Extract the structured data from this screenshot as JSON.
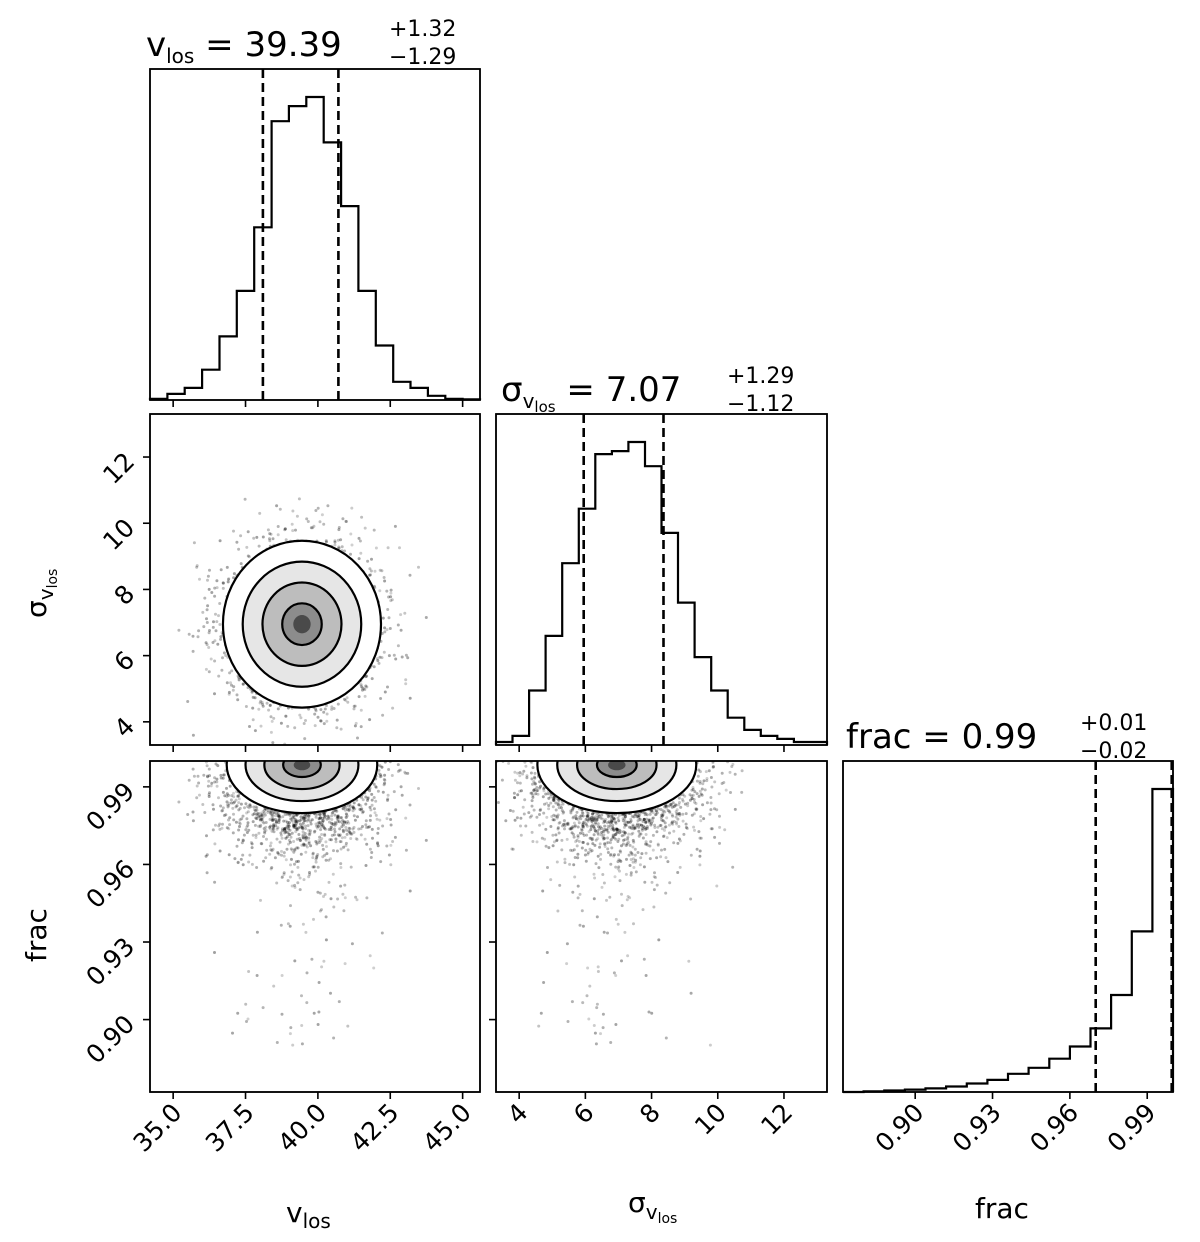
{
  "chart_data": {
    "type": "corner",
    "parameters": [
      {
        "name": "v",
        "subscript": "los",
        "prefix": "",
        "title": {
          "value": "39.39",
          "plus": "+1.32",
          "minus": "−1.29"
        },
        "median": 39.39,
        "q16": 38.1,
        "q84": 40.71,
        "range": [
          34.2,
          45.6
        ],
        "ticks": [
          35.0,
          37.5,
          40.0,
          42.5,
          45.0
        ],
        "tick_labels": [
          "35.0",
          "37.5",
          "40.0",
          "42.5",
          "45.0"
        ],
        "label": {
          "base": "v",
          "sub": "los"
        }
      },
      {
        "name": "σ",
        "subscript": "los",
        "prefix": "σ",
        "title": {
          "value": "7.07",
          "plus": "+1.29",
          "minus": "−1.12"
        },
        "median": 7.07,
        "q16": 5.95,
        "q84": 8.36,
        "range": [
          3.3,
          13.3
        ],
        "ticks": [
          4,
          6,
          8,
          10,
          12
        ],
        "tick_labels": [
          "4",
          "6",
          "8",
          "10",
          "12"
        ],
        "label": {
          "base": "σ",
          "sub": "v",
          "subsub": "los"
        }
      },
      {
        "name": "frac",
        "title": {
          "value": "0.99",
          "plus": "+0.01",
          "minus": "−0.02"
        },
        "median": 0.99,
        "q16": 0.97,
        "q84": 0.9995,
        "range": [
          0.872,
          1.0
        ],
        "ticks": [
          0.9,
          0.93,
          0.96,
          0.99
        ],
        "tick_labels": [
          "0.90",
          "0.93",
          "0.96",
          "0.99"
        ],
        "label": {
          "base": "frac"
        }
      }
    ],
    "hist_v_los": {
      "bins": [
        34.2,
        34.8,
        35.4,
        36.0,
        36.6,
        37.2,
        37.8,
        38.4,
        39.0,
        39.6,
        40.2,
        40.8,
        41.4,
        42.0,
        42.6,
        43.2,
        43.8,
        44.4,
        45.0,
        45.6
      ],
      "counts": [
        0.004,
        0.02,
        0.04,
        0.1,
        0.21,
        0.36,
        0.57,
        0.92,
        0.97,
        1.0,
        0.85,
        0.64,
        0.36,
        0.18,
        0.06,
        0.04,
        0.014,
        0.004,
        0.002
      ]
    },
    "hist_sigma": {
      "bins": [
        3.3,
        3.8,
        4.3,
        4.8,
        5.3,
        5.8,
        6.3,
        6.8,
        7.3,
        7.8,
        8.3,
        8.8,
        9.3,
        9.8,
        10.3,
        10.8,
        11.3,
        11.8,
        12.3,
        12.8,
        13.3
      ],
      "counts": [
        0.01,
        0.03,
        0.18,
        0.36,
        0.6,
        0.78,
        0.96,
        0.97,
        1.0,
        0.92,
        0.7,
        0.47,
        0.29,
        0.18,
        0.09,
        0.05,
        0.03,
        0.02,
        0.01,
        0.01
      ]
    },
    "hist_frac": {
      "bins": [
        0.872,
        0.88,
        0.888,
        0.896,
        0.904,
        0.912,
        0.92,
        0.928,
        0.936,
        0.944,
        0.952,
        0.96,
        0.968,
        0.976,
        0.984,
        0.992,
        1.0
      ],
      "counts": [
        0.0,
        0.002,
        0.005,
        0.008,
        0.012,
        0.018,
        0.028,
        0.04,
        0.06,
        0.08,
        0.11,
        0.15,
        0.21,
        0.32,
        0.53,
        1.0
      ]
    },
    "posterior_center": {
      "v_los": 39.45,
      "sigma_v_los": 6.95,
      "frac": 0.9985
    },
    "posterior_sd": {
      "v_los": 1.3,
      "sigma_v_los": 1.2,
      "frac": 0.015
    },
    "contour_levels": [
      "0.5σ",
      "1σ",
      "1.5σ",
      "2σ"
    ],
    "grid": false,
    "colors": {
      "line": "#000000",
      "scatter": "#000000",
      "fill": "#ffffff"
    }
  }
}
